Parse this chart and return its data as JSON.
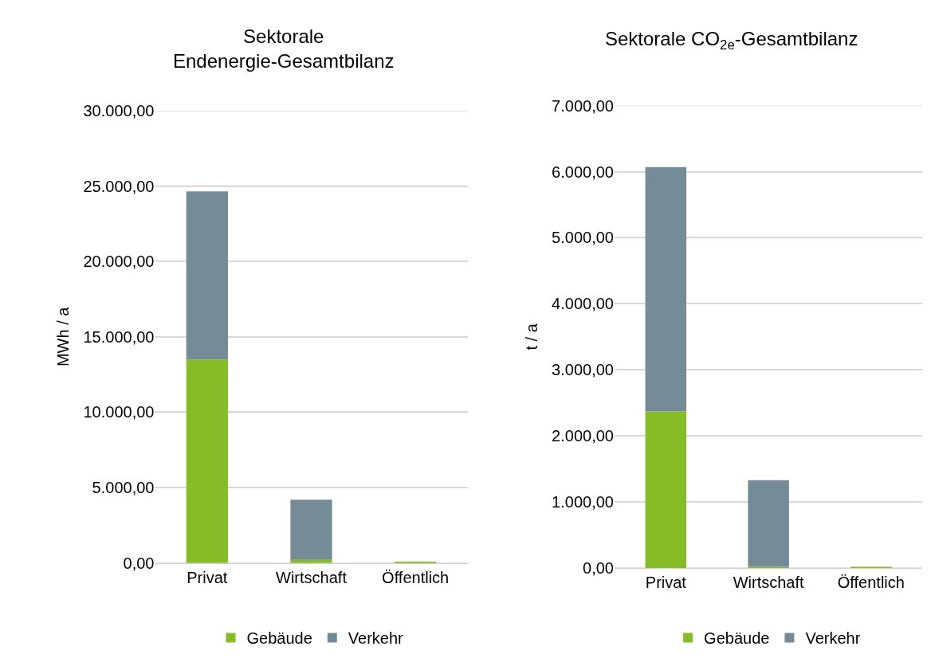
{
  "chart_data": [
    {
      "type": "bar",
      "title": "Sektorale\nEndenergie-Gesamtbilanz",
      "ylabel": "MWh / a",
      "categories": [
        "Privat",
        "Wirtschaft",
        "Öffentlich"
      ],
      "stacked": true,
      "series": [
        {
          "name": "Gebäude",
          "color": "#86bc25",
          "values": [
            13500,
            200,
            90
          ]
        },
        {
          "name": "Verkehr",
          "color": "#758b96",
          "values": [
            11150,
            4000,
            0
          ]
        }
      ],
      "ylim": [
        0,
        30000
      ],
      "yticks": [
        {
          "value": 0,
          "label": "0,00"
        },
        {
          "value": 5000,
          "label": "5.000,00"
        },
        {
          "value": 10000,
          "label": "10.000,00"
        },
        {
          "value": 15000,
          "label": "15.000,00"
        },
        {
          "value": 20000,
          "label": "20.000,00"
        },
        {
          "value": 25000,
          "label": "25.000,00"
        },
        {
          "value": 30000,
          "label": "30.000,00"
        }
      ],
      "grid": "y",
      "legend": "bottom"
    },
    {
      "type": "bar",
      "title": "Sektorale CO$_{2e}$-Gesamtbilanz",
      "ylabel": "t / a",
      "categories": [
        "Privat",
        "Wirtschaft",
        "Öffentlich"
      ],
      "stacked": true,
      "series": [
        {
          "name": "Gebäude",
          "color": "#86bc25",
          "values": [
            2370,
            20,
            10
          ]
        },
        {
          "name": "Verkehr",
          "color": "#758b96",
          "values": [
            3700,
            1310,
            0
          ]
        }
      ],
      "ylim": [
        0,
        7000
      ],
      "yticks": [
        {
          "value": 0,
          "label": "0,00"
        },
        {
          "value": 1000,
          "label": "1.000,00"
        },
        {
          "value": 2000,
          "label": "2.000,00"
        },
        {
          "value": 3000,
          "label": "3.000,00"
        },
        {
          "value": 4000,
          "label": "4.000,00"
        },
        {
          "value": 5000,
          "label": "5.000,00"
        },
        {
          "value": 6000,
          "label": "6.000,00"
        },
        {
          "value": 7000,
          "label": "7.000,00"
        }
      ],
      "grid": "y",
      "legend": "bottom"
    }
  ]
}
